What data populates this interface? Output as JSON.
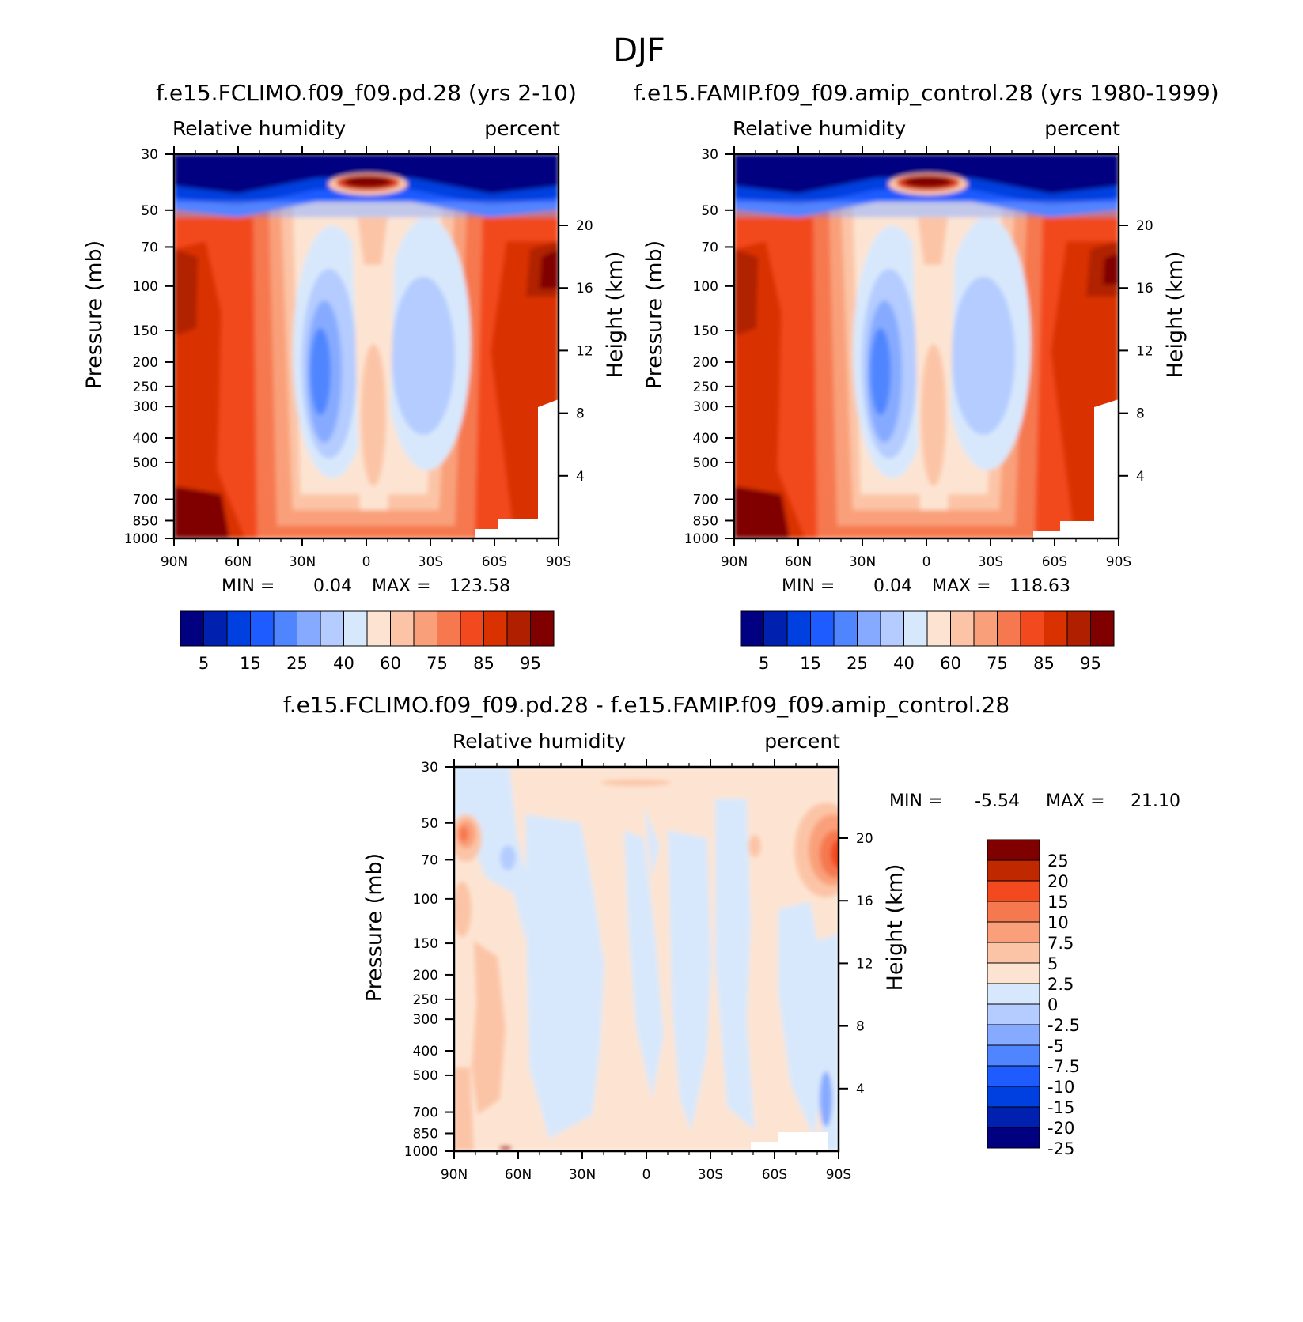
{
  "figure": {
    "main_title": "DJF",
    "colors": {
      "full_field": [
        "#000080",
        "#0020b0",
        "#0040e0",
        "#1f5cff",
        "#4f86ff",
        "#86aaff",
        "#b4ccff",
        "#d8e8fc",
        "#fde4d2",
        "#fcc4a6",
        "#f9a07a",
        "#f6784f",
        "#f24a1e",
        "#d93200",
        "#b02000",
        "#800000"
      ],
      "difference": [
        "#000080",
        "#0020b0",
        "#0040e0",
        "#1f5cff",
        "#4f86ff",
        "#86aaff",
        "#b4ccff",
        "#d8e8fc",
        "#fde4d2",
        "#fcc4a6",
        "#f9a07a",
        "#f6784f",
        "#f24a1e",
        "#c02800",
        "#800000"
      ]
    }
  },
  "chart_data": [
    {
      "type": "heatmap",
      "title": "f.e15.FCLIMO.f09_f09.pd.28 (yrs 2-10)",
      "left_label": "Relative humidity",
      "right_label": "percent",
      "xlabel": "",
      "ylabel": "Pressure (mb)",
      "y2label": "Height (km)",
      "x_ticks": [
        "90N",
        "60N",
        "30N",
        "0",
        "30S",
        "60S",
        "90S"
      ],
      "y_ticks": [
        30,
        50,
        70,
        100,
        150,
        200,
        250,
        300,
        400,
        500,
        700,
        850,
        1000
      ],
      "y_tick_labels": [
        "30",
        "50",
        "70",
        "100",
        "150",
        "200",
        "250",
        "300",
        "400",
        "500",
        "700",
        "850",
        "1000"
      ],
      "y2_ticks": [
        20,
        16,
        12,
        8,
        4
      ],
      "y2_tick_labels": [
        "20",
        "16",
        "12",
        "8",
        "4"
      ],
      "min_label": "MIN =",
      "min_value": "0.04",
      "max_label": "MAX =",
      "max_value": "123.58",
      "colorbar_labels": [
        "5",
        "15",
        "25",
        "40",
        "60",
        "75",
        "85",
        "95"
      ]
    },
    {
      "type": "heatmap",
      "title": "f.e15.FAMIP.f09_f09.amip_control.28 (yrs 1980-1999)",
      "left_label": "Relative humidity",
      "right_label": "percent",
      "xlabel": "",
      "ylabel": "Pressure (mb)",
      "y2label": "Height (km)",
      "x_ticks": [
        "90N",
        "60N",
        "30N",
        "0",
        "30S",
        "60S",
        "90S"
      ],
      "y_ticks": [
        30,
        50,
        70,
        100,
        150,
        200,
        250,
        300,
        400,
        500,
        700,
        850,
        1000
      ],
      "y_tick_labels": [
        "30",
        "50",
        "70",
        "100",
        "150",
        "200",
        "250",
        "300",
        "400",
        "500",
        "700",
        "850",
        "1000"
      ],
      "y2_ticks": [
        20,
        16,
        12,
        8,
        4
      ],
      "y2_tick_labels": [
        "20",
        "16",
        "12",
        "8",
        "4"
      ],
      "min_label": "MIN =",
      "min_value": "0.04",
      "max_label": "MAX =",
      "max_value": "118.63",
      "colorbar_labels": [
        "5",
        "15",
        "25",
        "40",
        "60",
        "75",
        "85",
        "95"
      ]
    },
    {
      "type": "heatmap",
      "title": "f.e15.FCLIMO.f09_f09.pd.28 - f.e15.FAMIP.f09_f09.amip_control.28",
      "left_label": "Relative humidity",
      "right_label": "percent",
      "xlabel": "",
      "ylabel": "Pressure (mb)",
      "y2label": "Height (km)",
      "x_ticks": [
        "90N",
        "60N",
        "30N",
        "0",
        "30S",
        "60S",
        "90S"
      ],
      "y_ticks": [
        30,
        50,
        70,
        100,
        150,
        200,
        250,
        300,
        400,
        500,
        700,
        850,
        1000
      ],
      "y_tick_labels": [
        "30",
        "50",
        "70",
        "100",
        "150",
        "200",
        "250",
        "300",
        "400",
        "500",
        "700",
        "850",
        "1000"
      ],
      "y2_ticks": [
        20,
        16,
        12,
        8,
        4
      ],
      "y2_tick_labels": [
        "20",
        "16",
        "12",
        "8",
        "4"
      ],
      "min_label": "MIN =",
      "min_value": "-5.54",
      "max_label": "MAX =",
      "max_value": "21.10",
      "colorbar_labels": [
        "25",
        "20",
        "15",
        "10",
        "7.5",
        "5",
        "2.5",
        "0",
        "-2.5",
        "-5",
        "-7.5",
        "-10",
        "-15",
        "-20",
        "-25"
      ]
    }
  ]
}
